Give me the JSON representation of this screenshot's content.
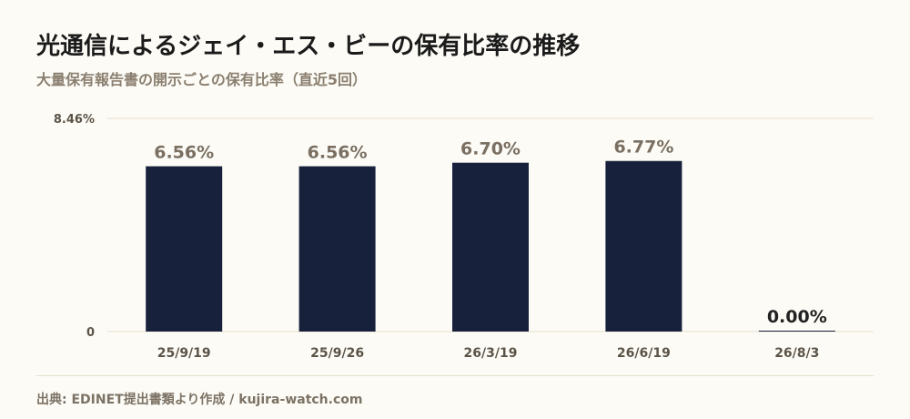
{
  "title": "光通信によるジェイ・エス・ビーの保有比率の推移",
  "subtitle": "大量保有報告書の開示ごとの保有比率（直近5回）",
  "footer": "出典: EDINET提出書類より作成 / kujira-watch.com",
  "colors": {
    "bar": "#17213c",
    "value_label": "#7a6f61",
    "zero_value_label": "#222222",
    "grid": "#e6dfcc",
    "axis_text": "#5c5448"
  },
  "chart_data": {
    "type": "bar",
    "categories": [
      "25/9/19",
      "25/9/26",
      "26/3/19",
      "26/6/19",
      "26/8/3"
    ],
    "values": [
      6.56,
      6.56,
      6.7,
      6.77,
      0.0
    ],
    "value_labels": [
      "6.56%",
      "6.56%",
      "6.70%",
      "6.77%",
      "0.00%"
    ],
    "ylim": [
      0,
      8.46
    ],
    "yticks": [
      "0",
      "8.46%"
    ],
    "xlabel": "",
    "ylabel": "",
    "grid": true
  }
}
